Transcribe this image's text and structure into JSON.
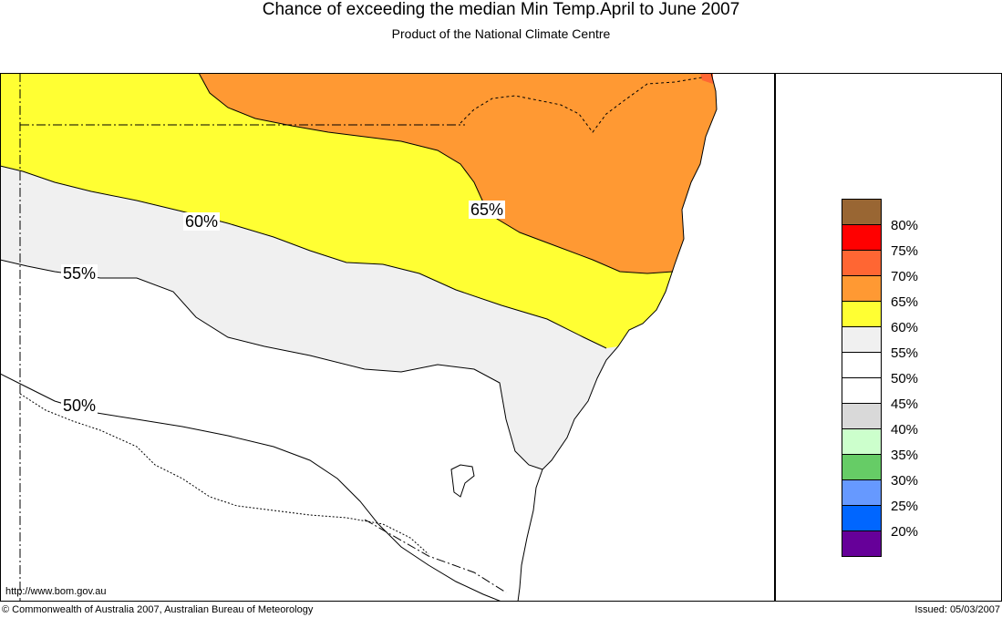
{
  "header": {
    "title": "Chance of exceeding the median Min Temp.April to June 2007",
    "subtitle": "Product of the National Climate Centre"
  },
  "map": {
    "region": "south-east Australia (New South Wales coast)",
    "zones": [
      {
        "percent_class": "65%",
        "color": "#ff9933"
      },
      {
        "percent_class": "60%",
        "color": "#ffff33"
      },
      {
        "percent_class": "55%",
        "color": "#f0f0f0"
      },
      {
        "percent_class": "50%",
        "color": "#ffffff"
      }
    ],
    "contour_labels": [
      "65%",
      "60%",
      "55%",
      "50%"
    ]
  },
  "legend": {
    "items": [
      {
        "label": "80%",
        "color": "#996633"
      },
      {
        "label": "75%",
        "color": "#ff0000"
      },
      {
        "label": "70%",
        "color": "#ff6633"
      },
      {
        "label": "65%",
        "color": "#ff9933"
      },
      {
        "label": "60%",
        "color": "#ffff33"
      },
      {
        "label": "55%",
        "color": "#f0f0f0"
      },
      {
        "label": "50%",
        "color": "#ffffff"
      },
      {
        "label": "45%",
        "color": "#ffffff"
      },
      {
        "label": "40%",
        "color": "#d9d9d9"
      },
      {
        "label": "35%",
        "color": "#ccffcc"
      },
      {
        "label": "30%",
        "color": "#66cc66"
      },
      {
        "label": "25%",
        "color": "#6699ff"
      },
      {
        "label": "20%",
        "color": "#0066ff"
      },
      {
        "label": "",
        "color": "#660099"
      }
    ]
  },
  "footer": {
    "url": "http://www.bom.gov.au",
    "copyright": "© Commonwealth of Australia 2007, Australian Bureau of Meteorology",
    "issued": "Issued: 05/03/2007"
  }
}
